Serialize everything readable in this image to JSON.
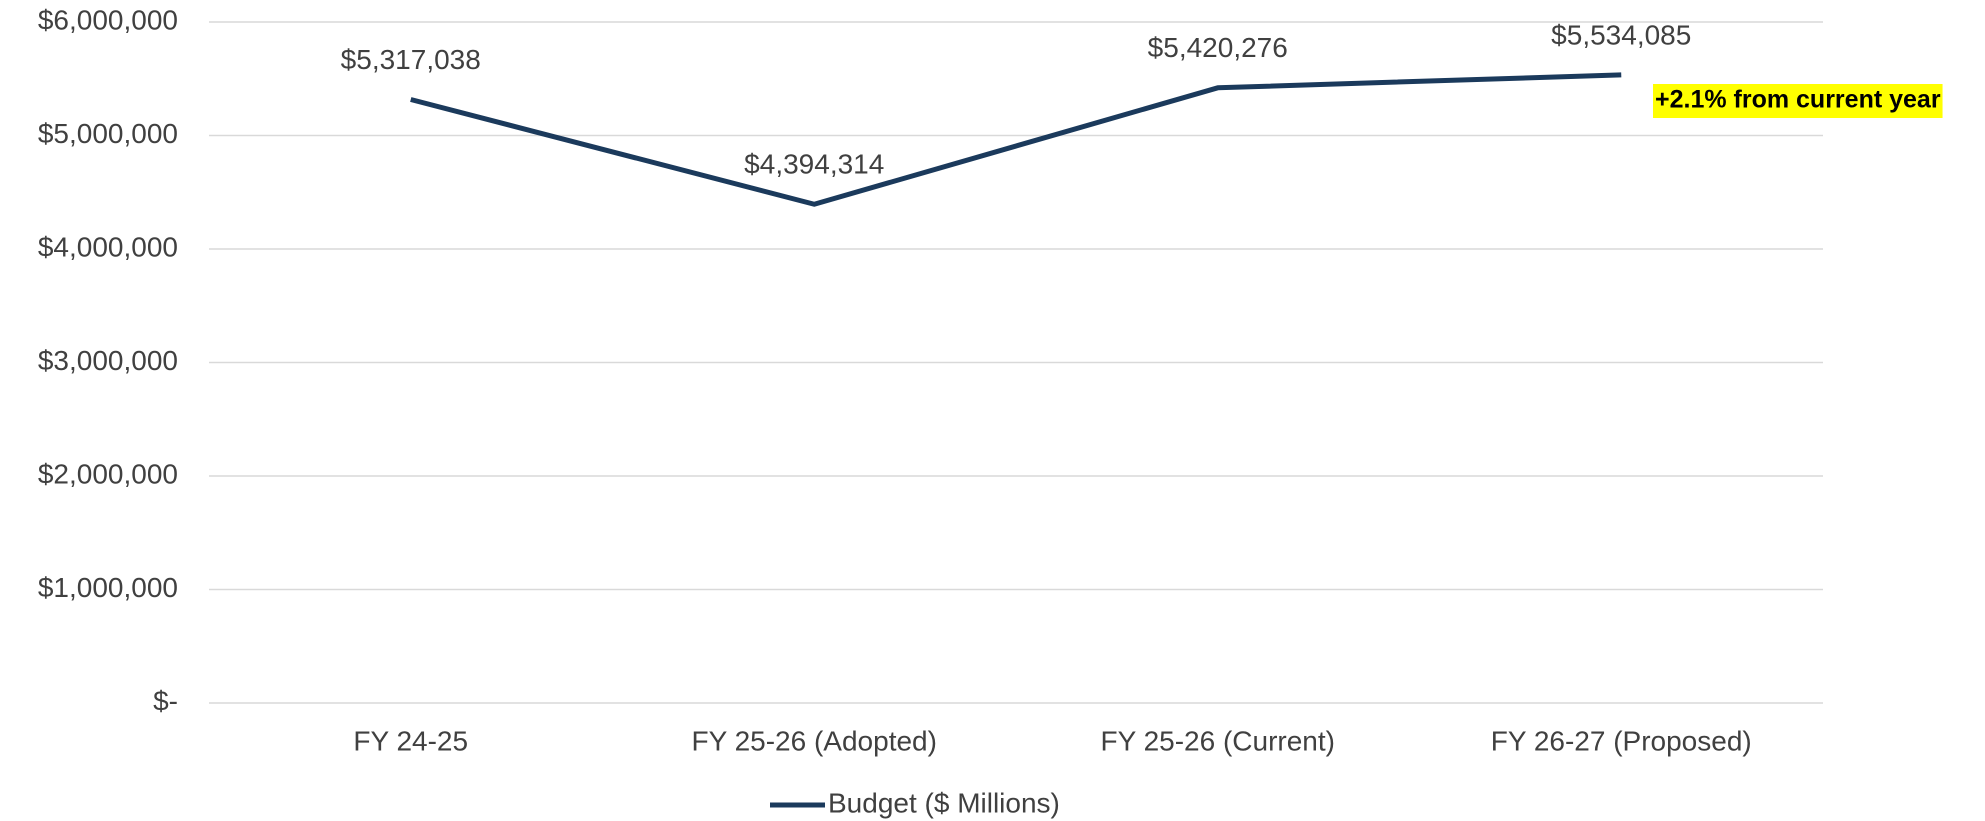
{
  "chart_data": {
    "type": "line",
    "categories": [
      "FY 24-25",
      "FY 25-26 (Adopted)",
      "FY 25-26 (Current)",
      "FY 26-27 (Proposed)"
    ],
    "series": [
      {
        "name": "Budget ($ Millions)",
        "color": "#1b3a5c",
        "values": [
          5317038,
          4394314,
          5420276,
          5534085
        ],
        "value_labels": [
          "$5,317,038",
          "$4,394,314",
          "$5,420,276",
          "$5,534,085"
        ]
      }
    ],
    "ylim": [
      0,
      6000000
    ],
    "yticks": [
      {
        "value": 0,
        "label": "$-"
      },
      {
        "value": 1000000,
        "label": "$1,000,000"
      },
      {
        "value": 2000000,
        "label": "$2,000,000"
      },
      {
        "value": 3000000,
        "label": "$3,000,000"
      },
      {
        "value": 4000000,
        "label": "$4,000,000"
      },
      {
        "value": 5000000,
        "label": "$5,000,000"
      },
      {
        "value": 6000000,
        "label": "$6,000,000"
      }
    ],
    "grid": true,
    "legend": "bottom",
    "annotation": "+2.1% from current year"
  }
}
